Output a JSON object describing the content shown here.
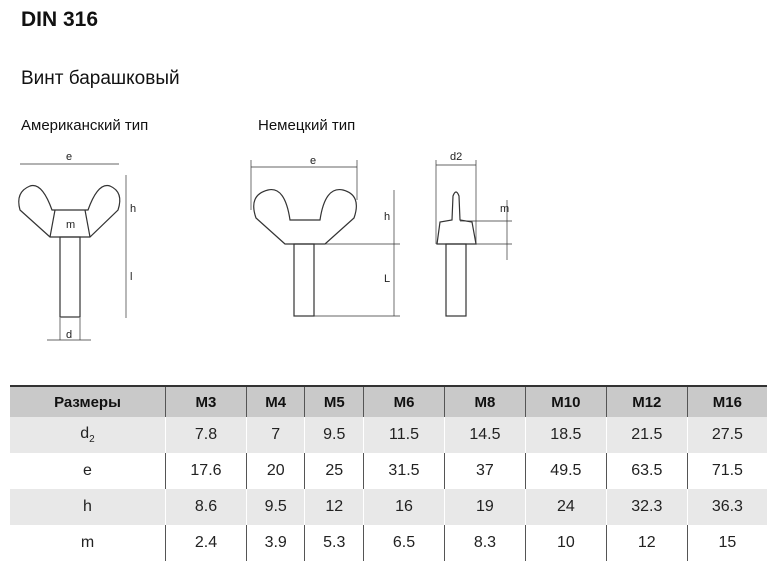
{
  "title": "DIN 316",
  "subtitle": "Винт барашковый",
  "types": {
    "american": "Американский тип",
    "german": "Немецкий тип"
  },
  "drawing_labels": {
    "e": "e",
    "h": "h",
    "m": "m",
    "l": "l",
    "d": "d",
    "L": "L",
    "d2": "d2"
  },
  "table": {
    "headers": [
      "Размеры",
      "M3",
      "M4",
      "M5",
      "M6",
      "M8",
      "M10",
      "M12",
      "M16"
    ],
    "rows": [
      {
        "label": "d",
        "sub": "2",
        "values": [
          "7.8",
          "7",
          "9.5",
          "11.5",
          "14.5",
          "18.5",
          "21.5",
          "27.5"
        ]
      },
      {
        "label": "e",
        "sub": "",
        "values": [
          "17.6",
          "20",
          "25",
          "31.5",
          "37",
          "49.5",
          "63.5",
          "71.5"
        ]
      },
      {
        "label": "h",
        "sub": "",
        "values": [
          "8.6",
          "9.5",
          "12",
          "16",
          "19",
          "24",
          "32.3",
          "36.3"
        ]
      },
      {
        "label": "m",
        "sub": "",
        "values": [
          "2.4",
          "3.9",
          "5.3",
          "6.5",
          "8.3",
          "10",
          "12",
          "15"
        ]
      }
    ]
  }
}
